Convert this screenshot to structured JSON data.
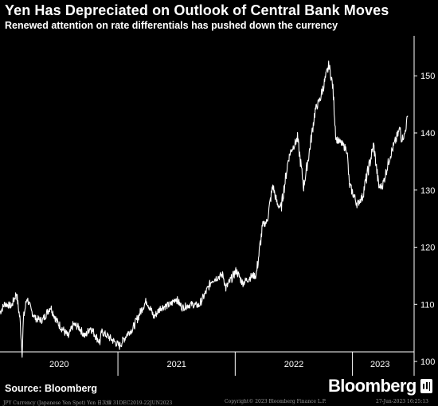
{
  "header": {
    "title": "Yen Has Depreciated on Outlook of Central Bank Moves",
    "subtitle": "Renewed attention on rate differentials has pushed down the currency"
  },
  "footer": {
    "source": "Source: Bloomberg",
    "brand": "Bloomberg",
    "security_note": "JPY Currency (Japanese Yen Spot) Yen   日次線 31DEC2019-22JUN2023",
    "copyright": "Copyright© 2023 Bloomberg Finance L.P.",
    "timestamp": "27-Jun-2023  16:25:13"
  },
  "colors": {
    "background": "#000000",
    "line": "#ffffff",
    "axis": "#ffffff",
    "footer_text": "#9a9a9a"
  },
  "chart_data": {
    "type": "line",
    "title": "Yen Has Depreciated on Outlook of Central Bank Moves",
    "subtitle": "Renewed attention on rate differentials has pushed down the currency",
    "xlabel": "",
    "ylabel": "",
    "y_axis_side": "right",
    "ylim": [
      97.5,
      157
    ],
    "y_ticks": [
      100,
      110,
      120,
      130,
      140,
      150
    ],
    "x_ticks": [
      "2020",
      "2021",
      "2022",
      "2023"
    ],
    "xlim": [
      "2019-12-31",
      "2023-06-22"
    ],
    "grid": false,
    "series": [
      {
        "points": [
          [
            "2019-12-31",
            108.6
          ],
          [
            "2020-01-15",
            110.1
          ],
          [
            "2020-02-05",
            109.7
          ],
          [
            "2020-02-20",
            112.0
          ],
          [
            "2020-03-02",
            107.5
          ],
          [
            "2020-03-09",
            101.6
          ],
          [
            "2020-03-13",
            107.5
          ],
          [
            "2020-03-24",
            111.2
          ],
          [
            "2020-04-06",
            108.9
          ],
          [
            "2020-04-20",
            107.5
          ],
          [
            "2020-05-11",
            107.2
          ],
          [
            "2020-06-05",
            109.6
          ],
          [
            "2020-06-25",
            107.0
          ],
          [
            "2020-07-31",
            104.3
          ],
          [
            "2020-08-15",
            106.5
          ],
          [
            "2020-09-01",
            106.0
          ],
          [
            "2020-09-21",
            104.4
          ],
          [
            "2020-10-07",
            106.0
          ],
          [
            "2020-11-06",
            103.3
          ],
          [
            "2020-11-11",
            105.2
          ],
          [
            "2020-12-01",
            104.4
          ],
          [
            "2021-01-06",
            102.7
          ],
          [
            "2021-02-01",
            105.0
          ],
          [
            "2021-02-15",
            105.6
          ],
          [
            "2021-03-15",
            109.0
          ],
          [
            "2021-03-31",
            110.7
          ],
          [
            "2021-04-23",
            107.8
          ],
          [
            "2021-05-14",
            109.4
          ],
          [
            "2021-06-15",
            110.0
          ],
          [
            "2021-06-30",
            111.1
          ],
          [
            "2021-07-20",
            109.4
          ],
          [
            "2021-08-15",
            110.0
          ],
          [
            "2021-09-10",
            109.8
          ],
          [
            "2021-09-30",
            111.9
          ],
          [
            "2021-10-20",
            114.2
          ],
          [
            "2021-11-24",
            115.2
          ],
          [
            "2021-12-03",
            112.8
          ],
          [
            "2022-01-04",
            115.9
          ],
          [
            "2022-01-24",
            113.7
          ],
          [
            "2022-02-24",
            115.0
          ],
          [
            "2022-03-07",
            115.0
          ],
          [
            "2022-03-28",
            123.9
          ],
          [
            "2022-04-10",
            124.5
          ],
          [
            "2022-04-28",
            130.8
          ],
          [
            "2022-05-12",
            127.5
          ],
          [
            "2022-05-24",
            126.9
          ],
          [
            "2022-06-15",
            135.2
          ],
          [
            "2022-06-22",
            136.7
          ],
          [
            "2022-07-14",
            139.0
          ],
          [
            "2022-08-02",
            130.6
          ],
          [
            "2022-08-20",
            136.8
          ],
          [
            "2022-09-07",
            144.0
          ],
          [
            "2022-09-22",
            145.9
          ],
          [
            "2022-10-20",
            151.9
          ],
          [
            "2022-10-31",
            148.5
          ],
          [
            "2022-11-11",
            139.0
          ],
          [
            "2022-11-30",
            138.0
          ],
          [
            "2022-12-15",
            137.0
          ],
          [
            "2022-12-22",
            131.0
          ],
          [
            "2023-01-16",
            127.5
          ],
          [
            "2023-02-01",
            128.9
          ],
          [
            "2023-03-08",
            137.9
          ],
          [
            "2023-03-24",
            130.5
          ],
          [
            "2023-04-05",
            130.8
          ],
          [
            "2023-04-28",
            136.0
          ],
          [
            "2023-05-30",
            140.9
          ],
          [
            "2023-06-02",
            138.9
          ],
          [
            "2023-06-12",
            139.6
          ],
          [
            "2023-06-22",
            143.0
          ]
        ]
      }
    ]
  }
}
